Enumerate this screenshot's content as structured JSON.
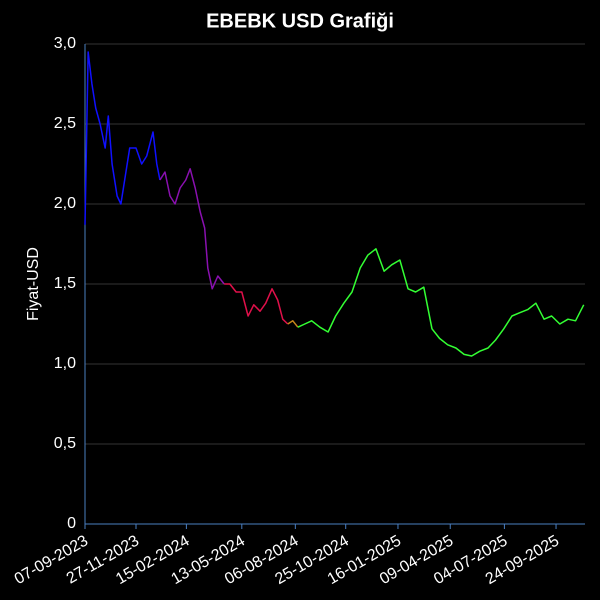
{
  "chart_data": {
    "type": "line",
    "title": "EBEBK USD Grafiği",
    "y_label": "Fiyat-USD",
    "xlim": [
      "07-09-2023",
      "09-11-2025"
    ],
    "xticks": [
      "07-09-2023",
      "27-11-2023",
      "15-02-2024",
      "13-05-2024",
      "06-08-2024",
      "25-10-2024",
      "16-01-2025",
      "09-04-2025",
      "04-07-2025",
      "24-09-2025"
    ],
    "ylim": [
      0,
      3
    ],
    "yticks": [
      0,
      {
        "value": 0.5,
        "label": "0,5"
      },
      {
        "value": 1,
        "label": "1,0"
      },
      {
        "value": 1.5,
        "label": "1,5"
      },
      {
        "value": 2,
        "label": "2,0"
      },
      {
        "value": 2.5,
        "label": "2,5"
      },
      {
        "value": 3,
        "label": "3,0"
      }
    ],
    "grid": true,
    "series": [
      {
        "color": "#1010ff",
        "x": [
          "07-09-2023",
          "12-09-2023",
          "18-09-2023",
          "24-09-2023",
          "01-10-2023",
          "09-10-2023",
          "14-10-2023",
          "20-10-2023",
          "28-10-2023",
          "03-11-2023",
          "09-11-2023",
          "17-11-2023",
          "27-11-2023",
          "06-12-2023",
          "14-12-2023",
          "24-12-2023",
          "30-12-2023",
          "04-01-2024"
        ],
        "values": [
          1.87,
          2.95,
          2.75,
          2.6,
          2.5,
          2.35,
          2.55,
          2.25,
          2.05,
          2.0,
          2.15,
          2.35,
          2.35,
          2.25,
          2.3,
          2.45,
          2.25,
          2.15
        ]
      },
      {
        "color": "#8a10b0",
        "x": [
          "04-01-2024",
          "12-01-2024",
          "20-01-2024",
          "28-01-2024",
          "05-02-2024",
          "14-02-2024",
          "21-02-2024",
          "29-02-2024",
          "08-03-2024",
          "15-03-2024",
          "20-03-2024",
          "27-03-2024",
          "05-04-2024",
          "15-04-2024"
        ],
        "values": [
          2.15,
          2.2,
          2.05,
          2.0,
          2.1,
          2.15,
          2.22,
          2.1,
          1.95,
          1.85,
          1.6,
          1.47,
          1.55,
          1.5
        ]
      },
      {
        "color": "#e0104a",
        "x": [
          "15-04-2024",
          "24-04-2024",
          "04-05-2024",
          "13-05-2024",
          "23-05-2024",
          "01-06-2024",
          "11-06-2024",
          "20-06-2024",
          "30-06-2024",
          "09-07-2024",
          "17-07-2024",
          "25-07-2024"
        ],
        "values": [
          1.5,
          1.5,
          1.45,
          1.45,
          1.3,
          1.37,
          1.33,
          1.38,
          1.47,
          1.4,
          1.28,
          1.25
        ]
      },
      {
        "color": "#c8861a",
        "x": [
          "25-07-2024",
          "02-08-2024",
          "10-08-2024"
        ],
        "values": [
          1.25,
          1.27,
          1.23
        ]
      },
      {
        "color": "#33ff33",
        "x": [
          "10-08-2024",
          "21-08-2024",
          "01-09-2024",
          "14-09-2024",
          "27-09-2024",
          "09-10-2024",
          "22-10-2024",
          "04-11-2024",
          "17-11-2024",
          "29-11-2024",
          "12-12-2024",
          "25-12-2024",
          "06-01-2025",
          "19-01-2025",
          "01-02-2025",
          "13-02-2025",
          "26-02-2025",
          "11-03-2025",
          "23-03-2025",
          "05-04-2025",
          "18-04-2025",
          "01-05-2025",
          "13-05-2025",
          "26-05-2025",
          "08-06-2025",
          "20-06-2025",
          "03-07-2025",
          "16-07-2025",
          "28-07-2025",
          "10-08-2025",
          "23-08-2025",
          "05-09-2025",
          "17-09-2025",
          "30-09-2025",
          "13-10-2025",
          "25-10-2025",
          "07-11-2025"
        ],
        "values": [
          1.23,
          1.25,
          1.27,
          1.23,
          1.2,
          1.3,
          1.38,
          1.45,
          1.6,
          1.68,
          1.72,
          1.58,
          1.62,
          1.65,
          1.47,
          1.45,
          1.48,
          1.22,
          1.16,
          1.12,
          1.1,
          1.06,
          1.05,
          1.08,
          1.1,
          1.15,
          1.22,
          1.3,
          1.32,
          1.34,
          1.38,
          1.28,
          1.3,
          1.25,
          1.28,
          1.27,
          1.37
        ]
      }
    ]
  }
}
